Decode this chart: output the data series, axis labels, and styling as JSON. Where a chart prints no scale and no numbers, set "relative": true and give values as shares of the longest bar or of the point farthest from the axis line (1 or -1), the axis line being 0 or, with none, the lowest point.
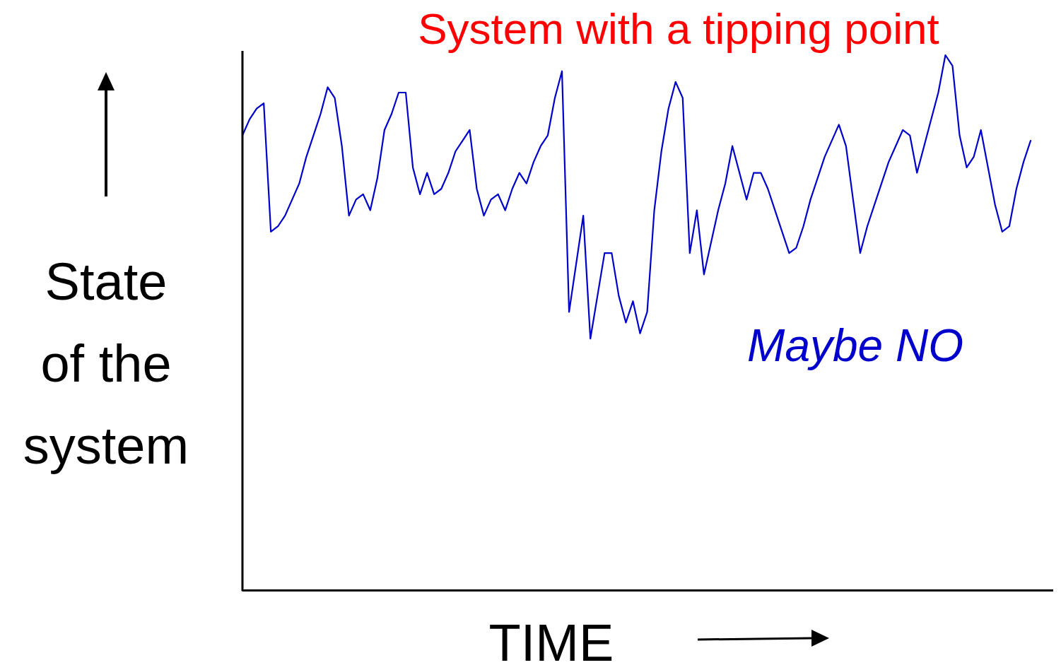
{
  "chart_data": {
    "type": "line",
    "title": "System with a tipping point",
    "xlabel": "TIME",
    "ylabel": "State of the system",
    "annotations": [
      "Maybe NO"
    ],
    "relative": true,
    "categories": [
      null,
      null,
      null,
      null,
      null,
      null,
      null,
      null,
      null,
      null,
      null,
      null,
      null,
      null,
      null,
      null,
      null,
      null,
      null,
      null,
      null,
      null,
      null,
      null,
      null,
      null,
      null,
      null,
      null,
      null,
      null,
      null,
      null,
      null,
      null,
      null,
      null,
      null,
      null,
      null,
      null,
      null,
      null,
      null,
      null,
      null,
      null,
      null,
      null,
      null,
      null,
      null,
      null,
      null,
      null,
      null,
      null,
      null,
      null,
      null,
      null,
      null,
      null,
      null,
      null,
      null,
      null,
      null,
      null,
      null,
      null,
      null,
      null,
      null,
      null,
      null,
      null,
      null,
      null,
      null,
      null,
      null,
      null,
      null,
      null,
      null,
      null,
      null,
      null,
      null,
      null,
      null,
      null,
      null,
      null,
      null,
      null,
      null,
      null,
      null,
      null,
      null,
      null,
      null,
      null,
      null,
      null,
      null,
      null,
      null,
      null,
      null
    ],
    "series": [
      {
        "color": "#0000cc",
        "values": [
          0.85,
          0.88,
          0.9,
          0.91,
          0.67,
          0.68,
          0.7,
          0.73,
          0.76,
          0.81,
          0.85,
          0.89,
          0.94,
          0.92,
          0.83,
          0.7,
          0.73,
          0.74,
          0.71,
          0.77,
          0.86,
          0.89,
          0.93,
          0.93,
          0.79,
          0.74,
          0.78,
          0.74,
          0.75,
          0.78,
          0.82,
          0.84,
          0.86,
          0.75,
          0.7,
          0.73,
          0.74,
          0.71,
          0.75,
          0.78,
          0.76,
          0.8,
          0.83,
          0.85,
          0.92,
          0.97,
          0.52,
          0.61,
          0.7,
          0.47,
          0.55,
          0.63,
          0.63,
          0.55,
          0.5,
          0.54,
          0.48,
          0.52,
          0.71,
          0.82,
          0.9,
          0.95,
          0.92,
          0.63,
          0.71,
          0.59,
          0.65,
          0.71,
          0.76,
          0.83,
          0.78,
          0.73,
          0.78,
          0.78,
          0.75,
          0.71,
          0.67,
          0.63,
          0.64,
          0.68,
          0.73,
          0.77,
          0.81,
          0.84,
          0.87,
          0.83,
          0.73,
          0.63,
          0.68,
          0.72,
          0.76,
          0.8,
          0.83,
          0.86,
          0.85,
          0.78,
          0.83,
          0.88,
          0.93,
          1.0,
          0.98,
          0.85,
          0.79,
          0.81,
          0.86,
          0.79,
          0.72,
          0.67,
          0.68,
          0.75,
          0.8,
          0.84
        ]
      }
    ]
  }
}
